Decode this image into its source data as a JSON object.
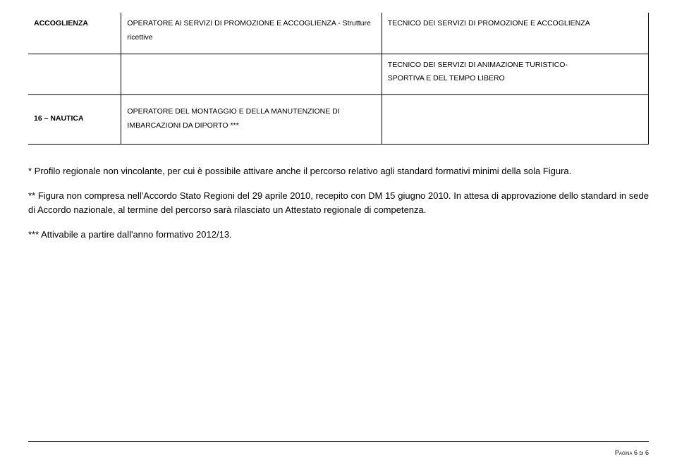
{
  "table": {
    "row1": {
      "colA": "ACCOGLIENZA",
      "colB_line1": "OPERATORE AI SERVIZI DI PROMOZIONE E ACCOGLIENZA - Strutture",
      "colB_line2": "ricettive",
      "colC": "TECNICO DEI SERVIZI DI PROMOZIONE E ACCOGLIENZA"
    },
    "row2": {
      "colC_line1": "TECNICO DEI SERVIZI DI ANIMAZIONE TURISTICO-",
      "colC_line2": "SPORTIVA E DEL TEMPO LIBERO"
    },
    "row3": {
      "colA": "16 – NAUTICA",
      "colB_line1": "OPERATORE DEL MONTAGGIO E DELLA MANUTENZIONE DI",
      "colB_line2": "IMBARCAZIONI DA DIPORTO ***"
    }
  },
  "para1": "* Profilo regionale non vincolante, per cui è possibile attivare anche il percorso relativo agli standard formativi minimi della sola Figura.",
  "para2": "** Figura non compresa nell'Accordo Stato Regioni del 29 aprile 2010, recepito con DM 15 giugno 2010. In attesa di approvazione dello standard in sede di Accordo nazionale, al termine del percorso sarà rilasciato un Attestato regionale di competenza.",
  "para3": "*** Attivabile a partire dall'anno formativo 2012/13.",
  "footer": "Pagina 6 di 6"
}
